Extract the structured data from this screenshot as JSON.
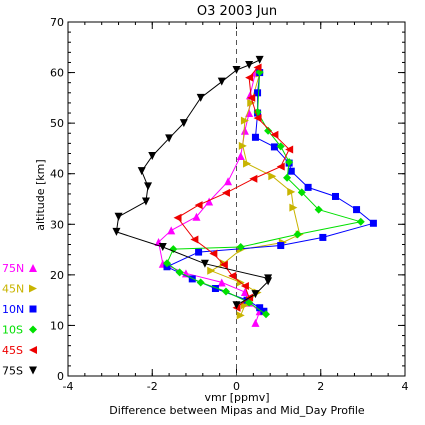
{
  "chart_data": {
    "type": "line",
    "title": "O3 2003 Jun",
    "xlabel": "vmr [ppmv]",
    "ylabel": "altitude [km]",
    "subtitle": "Difference between Mipas and Mid_Day Profile",
    "xlim": [
      -4,
      4
    ],
    "ylim": [
      0,
      70
    ],
    "xticks": [
      "-4",
      "-2",
      "0",
      "2",
      "4"
    ],
    "yticks": [
      "0",
      "10",
      "20",
      "30",
      "40",
      "50",
      "60",
      "70"
    ],
    "grid": false,
    "zero_line": "dashed",
    "legend_position": "left",
    "series": [
      {
        "name": "75N",
        "color": "#ff00ff",
        "marker": "triangle-up",
        "points": [
          [
            0.45,
            10.5
          ],
          [
            0.55,
            12.8
          ],
          [
            0.3,
            14.5
          ],
          [
            0.2,
            16.6
          ],
          [
            -0.35,
            18.5
          ],
          [
            -1.2,
            20.3
          ],
          [
            -1.75,
            22.2
          ],
          [
            -1.85,
            26.5
          ],
          [
            -1.55,
            28.8
          ],
          [
            -0.95,
            31.5
          ],
          [
            -0.65,
            34.5
          ],
          [
            -0.2,
            38.5
          ],
          [
            0.1,
            43.5
          ],
          [
            0.2,
            48.5
          ],
          [
            0.3,
            52
          ],
          [
            0.32,
            55.5
          ],
          [
            0.45,
            60
          ]
        ]
      },
      {
        "name": "45N",
        "color": "#c8b400",
        "marker": "triangle-right",
        "points": [
          [
            0.1,
            12
          ],
          [
            0.2,
            14
          ],
          [
            0.5,
            16.5
          ],
          [
            0.1,
            18.5
          ],
          [
            -0.6,
            20.8
          ],
          [
            -0.3,
            22.3
          ],
          [
            0.1,
            25
          ],
          [
            1.1,
            26.4
          ],
          [
            1.5,
            28
          ],
          [
            1.35,
            33.3
          ],
          [
            1.3,
            36.4
          ],
          [
            0.85,
            39.5
          ],
          [
            0.25,
            42
          ],
          [
            0.15,
            45.5
          ],
          [
            0.2,
            50.5
          ],
          [
            0.35,
            54
          ],
          [
            0.55,
            59.8
          ]
        ]
      },
      {
        "name": "10N",
        "color": "#0000ff",
        "marker": "square",
        "points": [
          [
            0.65,
            12.8
          ],
          [
            0.55,
            13.5
          ],
          [
            0.25,
            15
          ],
          [
            -0.5,
            17.3
          ],
          [
            -1.05,
            19.2
          ],
          [
            -1.65,
            21.6
          ],
          [
            -0.9,
            24.5
          ],
          [
            1.05,
            25.8
          ],
          [
            2.05,
            27.4
          ],
          [
            3.25,
            30.2
          ],
          [
            2.85,
            32.9
          ],
          [
            2.35,
            35.5
          ],
          [
            1.7,
            37.3
          ],
          [
            1.3,
            40.5
          ],
          [
            1.25,
            42.1
          ],
          [
            0.9,
            45.3
          ],
          [
            0.45,
            47.2
          ],
          [
            0.5,
            52
          ],
          [
            0.5,
            56
          ],
          [
            0.55,
            60
          ]
        ]
      },
      {
        "name": "10S",
        "color": "#00e000",
        "marker": "diamond",
        "points": [
          [
            0.7,
            12.2
          ],
          [
            0.3,
            14.5
          ],
          [
            -0.25,
            16.7
          ],
          [
            -0.85,
            18.5
          ],
          [
            -1.35,
            20.5
          ],
          [
            -1.65,
            22.3
          ],
          [
            -1.5,
            25.1
          ],
          [
            0.1,
            25.5
          ],
          [
            1.45,
            28
          ],
          [
            2.95,
            30.5
          ],
          [
            1.95,
            32.9
          ],
          [
            1.55,
            36.3
          ],
          [
            1.2,
            39.2
          ],
          [
            1.25,
            42.3
          ],
          [
            1.05,
            45.4
          ],
          [
            0.75,
            48.5
          ],
          [
            0.5,
            52.2
          ],
          [
            0.55,
            60.1
          ]
        ]
      },
      {
        "name": "45S",
        "color": "#ee0000",
        "marker": "triangle-left",
        "points": [
          [
            0.0,
            13.5
          ],
          [
            0.3,
            15.5
          ],
          [
            0.2,
            17.8
          ],
          [
            -0.1,
            19.8
          ],
          [
            -0.3,
            22
          ],
          [
            -0.55,
            24.2
          ],
          [
            -1.0,
            27
          ],
          [
            -1.4,
            31.3
          ],
          [
            -0.9,
            33.8
          ],
          [
            -0.25,
            36.2
          ],
          [
            0.4,
            39
          ],
          [
            1.05,
            41.4
          ],
          [
            1.25,
            44.8
          ],
          [
            0.9,
            47.7
          ],
          [
            0.5,
            51
          ],
          [
            0.35,
            55
          ],
          [
            0.3,
            59
          ],
          [
            0.5,
            61
          ]
        ]
      },
      {
        "name": "75S",
        "color": "#000000",
        "marker": "triangle-down",
        "points": [
          [
            0.0,
            14
          ],
          [
            0.45,
            16.2
          ],
          [
            0.75,
            18.7
          ],
          [
            0.75,
            19.3
          ],
          [
            -0.75,
            22.2
          ],
          [
            -1.75,
            25.5
          ],
          [
            -2.85,
            28.5
          ],
          [
            -2.8,
            31.5
          ],
          [
            -2.15,
            34.5
          ],
          [
            -2.1,
            37.5
          ],
          [
            -2.25,
            40.5
          ],
          [
            -2.0,
            43.5
          ],
          [
            -1.6,
            47
          ],
          [
            -1.25,
            50
          ],
          [
            -0.85,
            55
          ],
          [
            -0.35,
            58.2
          ],
          [
            0.0,
            60.5
          ],
          [
            0.3,
            61.5
          ],
          [
            0.55,
            62.5
          ]
        ]
      }
    ]
  }
}
